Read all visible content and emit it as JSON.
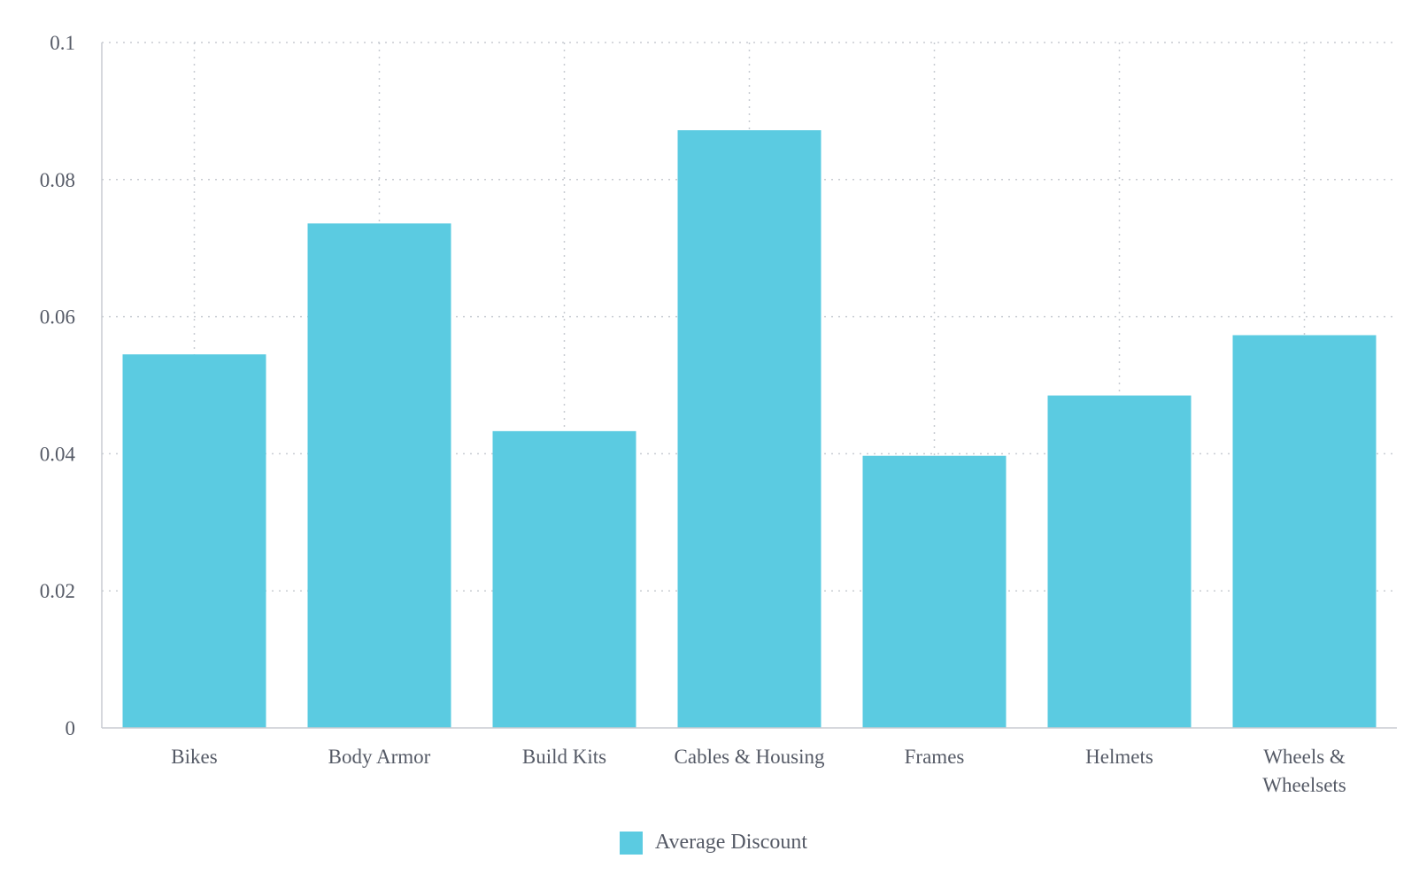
{
  "chart_data": {
    "type": "bar",
    "categories": [
      "Bikes",
      "Body Armor",
      "Build Kits",
      "Cables & Housing",
      "Frames",
      "Helmets",
      "Wheels & Wheelsets"
    ],
    "series": [
      {
        "name": "Average Discount",
        "values": [
          0.0545,
          0.0736,
          0.0433,
          0.0872,
          0.0397,
          0.0485,
          0.0573
        ],
        "color": "#5BCBE1"
      }
    ],
    "y_ticks": [
      "0",
      "0.02",
      "0.04",
      "0.06",
      "0.08",
      "0.1"
    ],
    "ylim": [
      0,
      0.1
    ],
    "grid": true,
    "legend_position": "bottom-center"
  }
}
